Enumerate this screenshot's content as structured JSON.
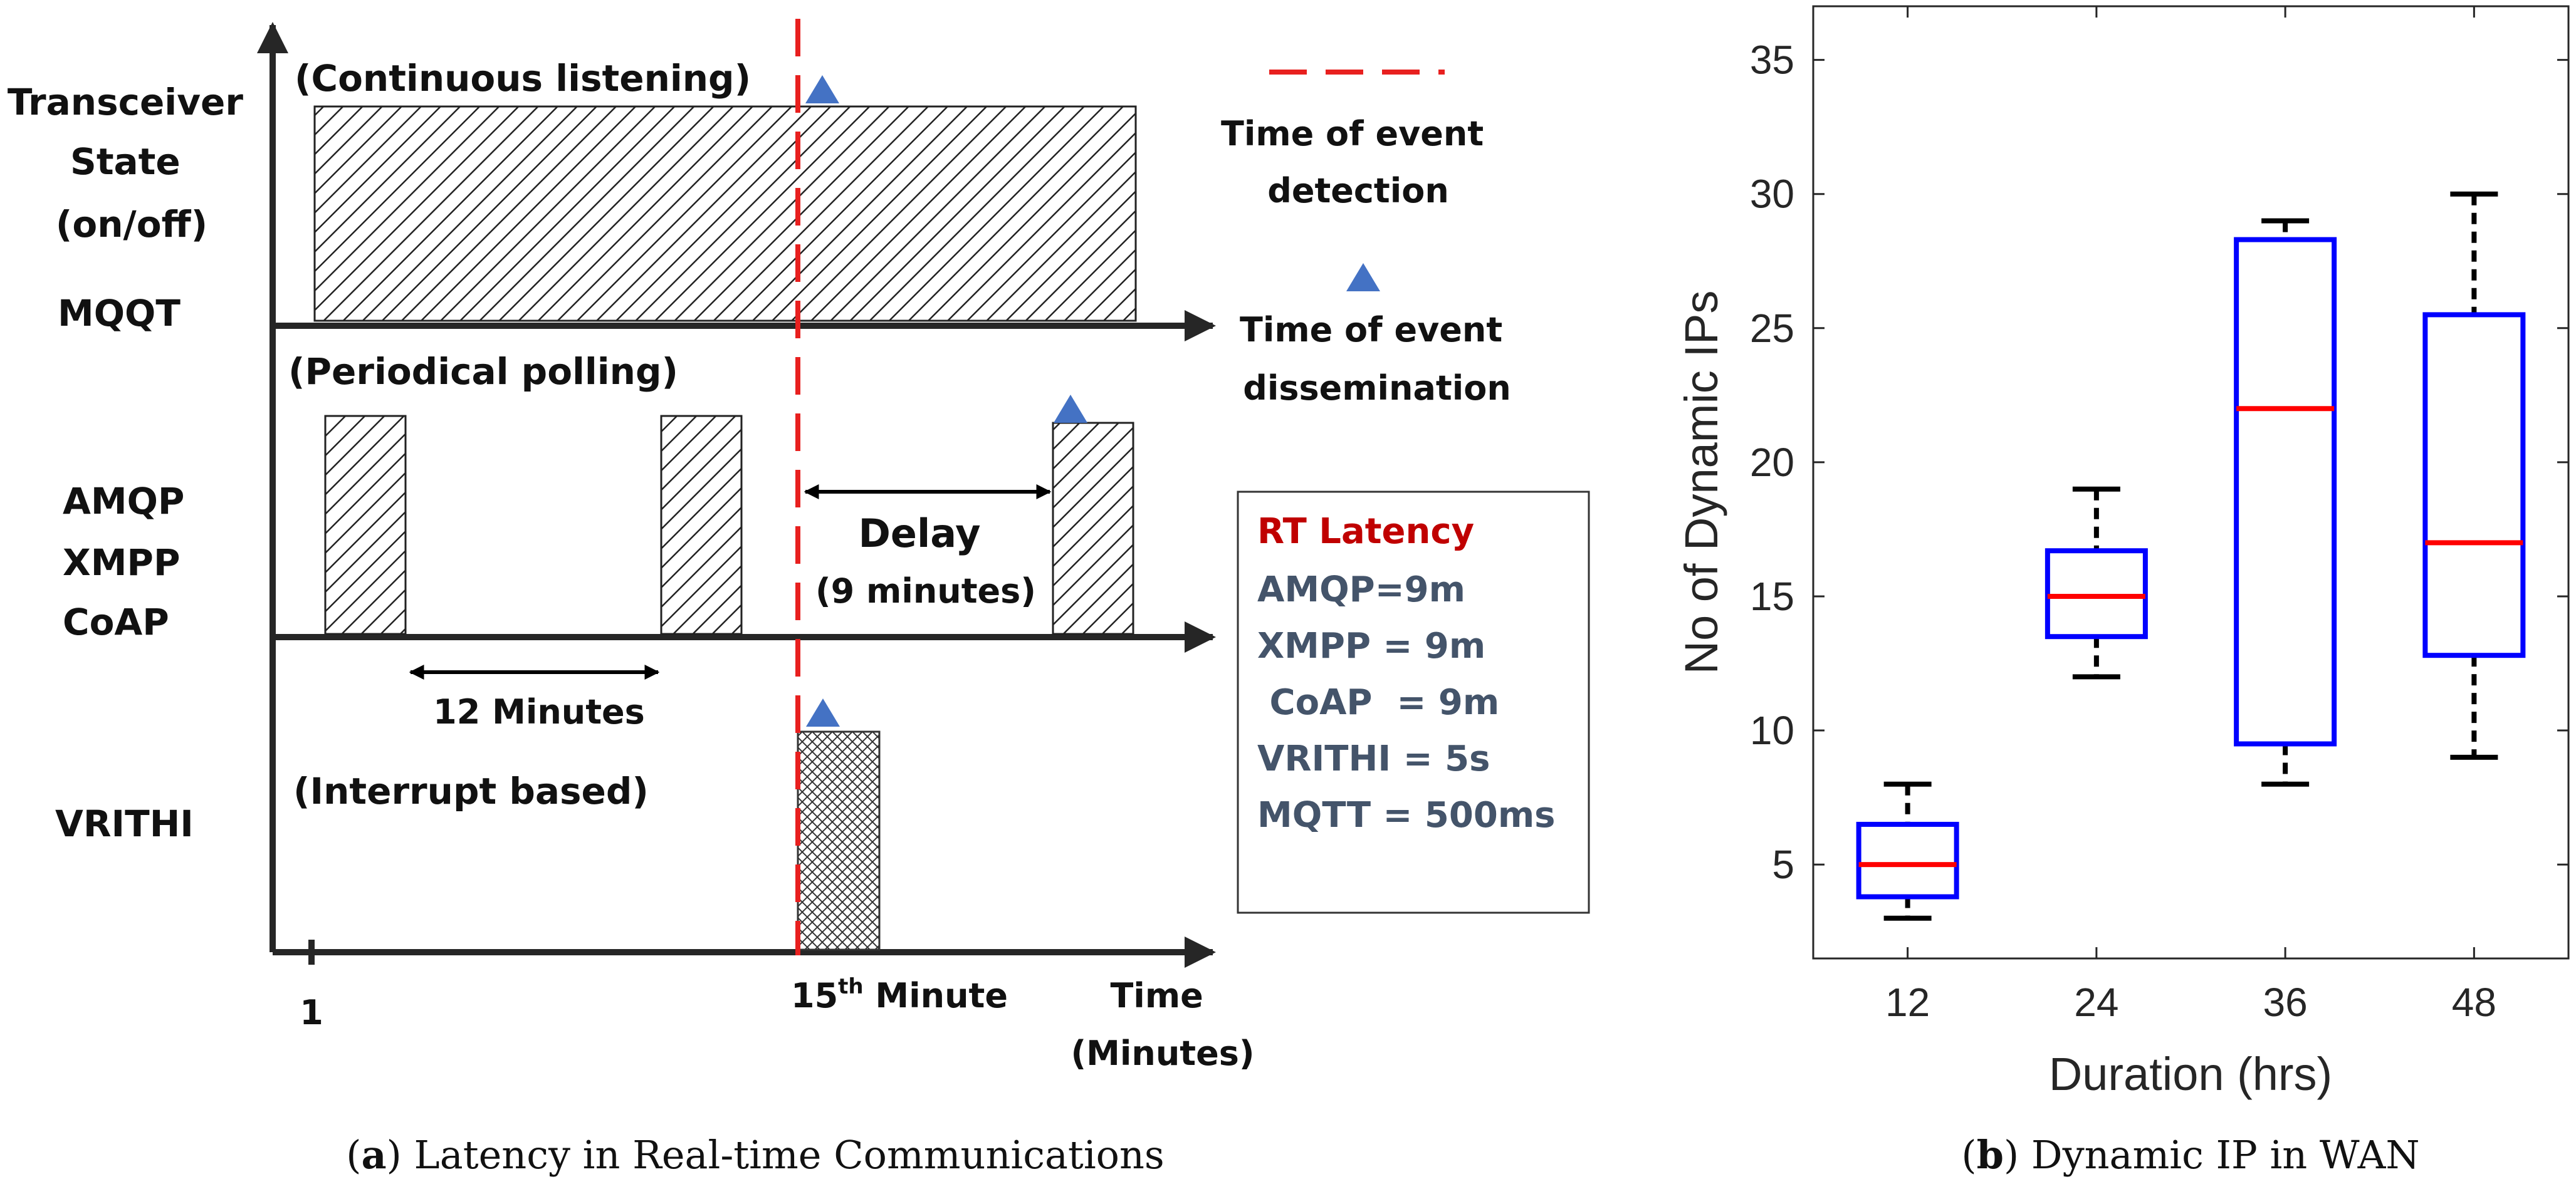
{
  "panel_a": {
    "labels": {
      "state_line1": "Transceiver",
      "state_line2": "State",
      "state_line3": "(on/off)",
      "mqqt": "MQQT",
      "continuous": "(Continuous listening)",
      "periodical": "(Periodical polling)",
      "amqp": "AMQP",
      "xmpp": "XMPP",
      "coap": "CoAP",
      "delay": "Delay",
      "delay_sub": "(9 minutes)",
      "twelve_minutes": "12 Minutes",
      "interrupt": "(Interrupt based)",
      "vrithi": "VRITHI",
      "tick_1": "1",
      "tick_15": "15",
      "tick_15_sup": "th",
      "tick_15_rest": " Minute",
      "time_line1": "Time",
      "time_line2": "(Minutes)"
    },
    "legend": {
      "detect_line1": "Time of event",
      "detect_line2": "detection",
      "dissem_line1": "Time of event",
      "dissem_line2": "dissemination"
    },
    "latency_box": {
      "title": "RT Latency",
      "items": [
        "AMQP=9m",
        "XMPP = 9m",
        " CoAP  = 9m",
        "VRITHI = 5s",
        "MQTT = 500ms"
      ]
    },
    "caption_bold": "a",
    "caption_rest": " Latency in Real-time Communications"
  },
  "panel_b": {
    "caption_bold": "b",
    "caption_rest": " Dynamic IP in WAN"
  },
  "chart_data": {
    "type": "box",
    "title": "",
    "xlabel": "Duration (hrs)",
    "ylabel": "No of Dynamic IPs",
    "ylim": [
      1.5,
      37
    ],
    "yticks": [
      5,
      10,
      15,
      20,
      25,
      30,
      35
    ],
    "categories": [
      "12",
      "24",
      "36",
      "48"
    ],
    "boxes": [
      {
        "category": "12",
        "min": 3,
        "q1": 3.8,
        "median": 5,
        "q3": 6.5,
        "max": 8
      },
      {
        "category": "24",
        "min": 12,
        "q1": 13.5,
        "median": 15,
        "q3": 16.7,
        "max": 19
      },
      {
        "category": "36",
        "min": 8,
        "q1": 9.5,
        "median": 22,
        "q3": 28.3,
        "max": 29
      },
      {
        "category": "48",
        "min": 9,
        "q1": 12.8,
        "median": 17,
        "q3": 25.5,
        "max": 30
      }
    ],
    "colors": {
      "box": "#0000ff",
      "median": "#ff0000",
      "whisker": "#000000"
    }
  },
  "colors": {
    "event_detect": "#e8201f",
    "marker": "#4472c4",
    "latency_title": "#c00000",
    "latency_text": "#44546a",
    "axis": "#262626"
  }
}
